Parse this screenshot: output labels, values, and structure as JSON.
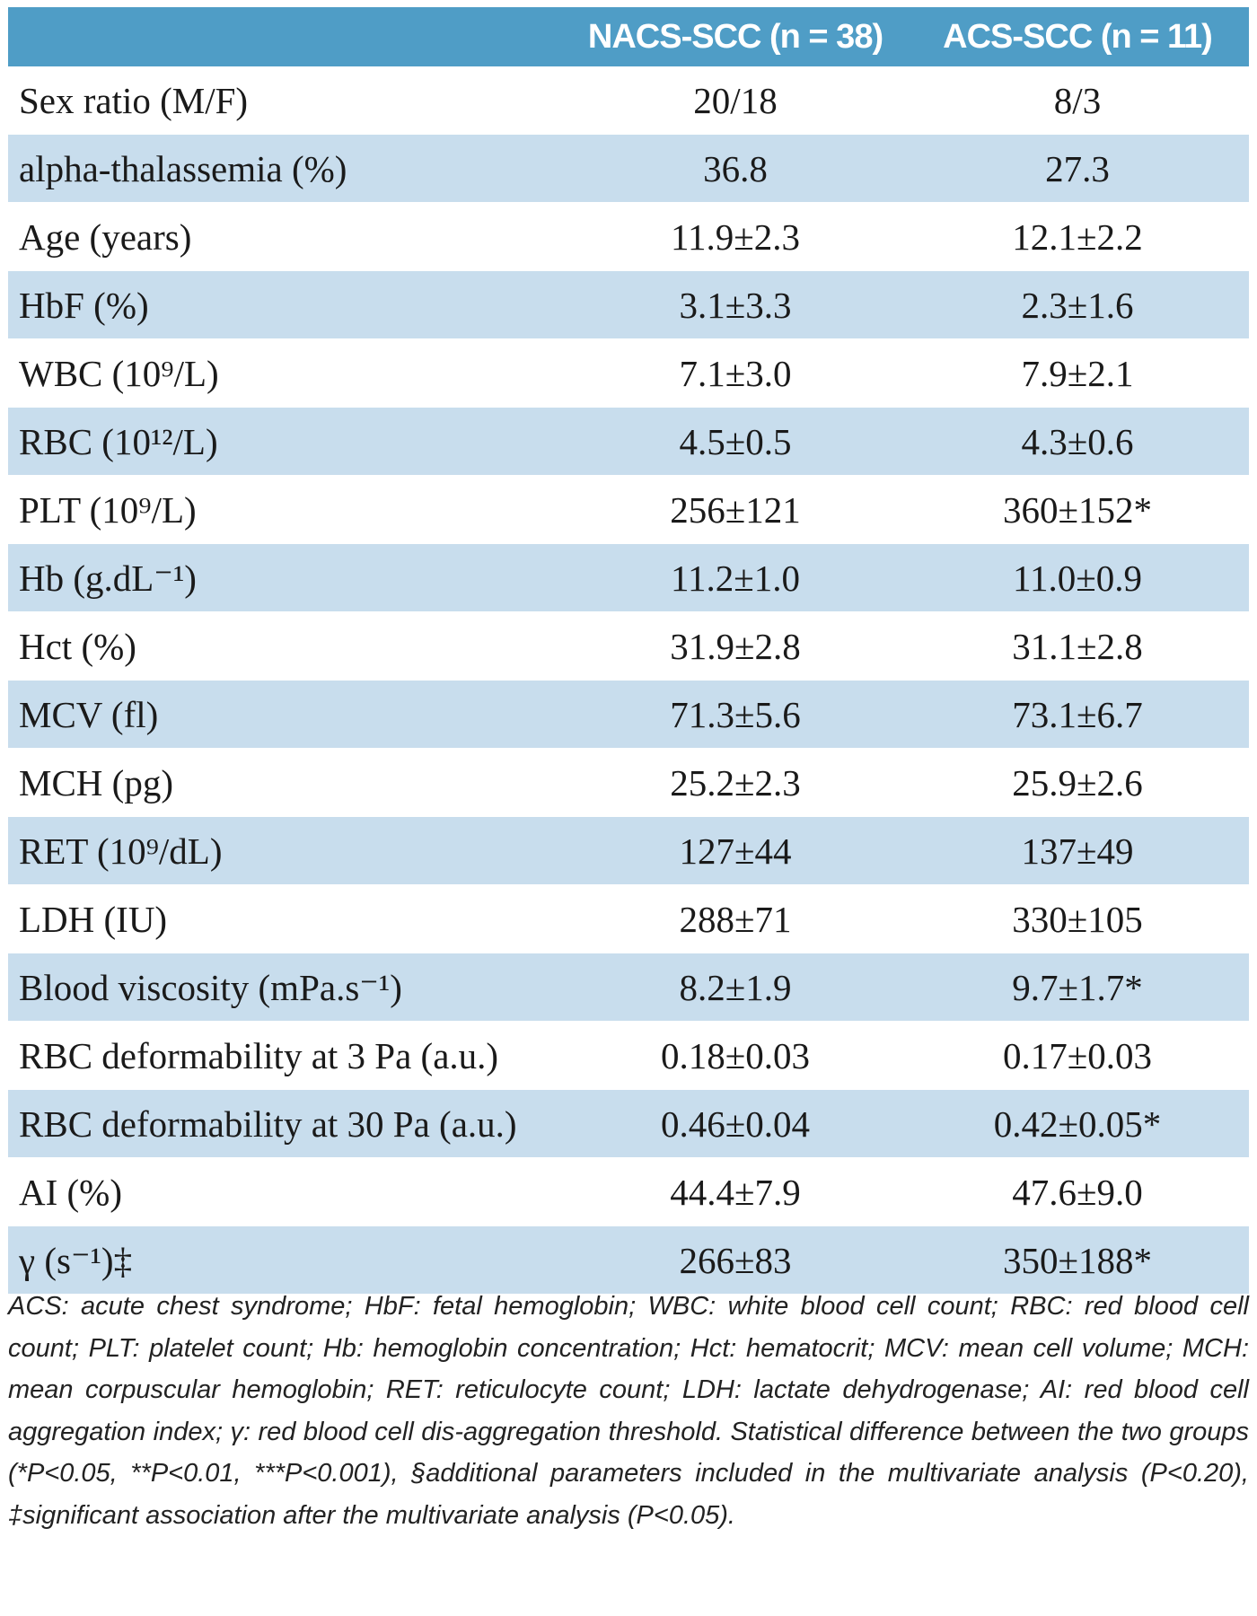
{
  "table": {
    "header": [
      "NACS-SCC (n = 38)",
      "ACS-SCC (n = 11)"
    ],
    "rows": [
      [
        "Sex ratio (M/F)",
        "20/18",
        "8/3"
      ],
      [
        "alpha-thalassemia (%)",
        "36.8",
        "27.3"
      ],
      [
        "Age (years)",
        "11.9±2.3",
        "12.1±2.2"
      ],
      [
        "HbF (%)",
        "3.1±3.3",
        "2.3±1.6"
      ],
      [
        "WBC (10⁹/L)",
        "7.1±3.0",
        "7.9±2.1"
      ],
      [
        "RBC (10¹²/L)",
        "4.5±0.5",
        "4.3±0.6"
      ],
      [
        "PLT (10⁹/L)",
        "256±121",
        "360±152*"
      ],
      [
        "Hb (g.dL⁻¹)",
        "11.2±1.0",
        "11.0±0.9"
      ],
      [
        "Hct (%)",
        "31.9±2.8",
        "31.1±2.8"
      ],
      [
        "MCV (fl)",
        "71.3±5.6",
        "73.1±6.7"
      ],
      [
        "MCH (pg)",
        "25.2±2.3",
        "25.9±2.6"
      ],
      [
        "RET (10⁹/dL)",
        "127±44",
        "137±49"
      ],
      [
        "LDH (IU)",
        "288±71",
        "330±105"
      ],
      [
        "Blood viscosity (mPa.s⁻¹)",
        "8.2±1.9",
        "9.7±1.7*"
      ],
      [
        "RBC deformability at 3 Pa (a.u.)",
        "0.18±0.03",
        "0.17±0.03"
      ],
      [
        "RBC deformability at 30 Pa (a.u.)",
        "0.46±0.04",
        "0.42±0.05*"
      ],
      [
        "AI (%)",
        "44.4±7.9",
        "47.6±9.0"
      ],
      [
        "γ (s⁻¹)‡",
        "266±83",
        "350±188*"
      ]
    ],
    "footnote": "ACS: acute chest syndrome; HbF: fetal hemoglobin; WBC: white blood cell count; RBC: red blood cell count; PLT: platelet count; Hb: hemoglobin concentration; Hct: hematocrit; MCV: mean cell volume; MCH: mean corpuscular hemoglobin; RET: reticulocyte count; LDH: lactate dehydrogenase; AI: red blood cell aggregation index; γ: red blood cell dis-aggregation threshold. Statistical difference between the two groups (*P<0.05, **P<0.01, ***P<0.001), §additional parameters included in the multivariate analysis (P<0.20), ‡significant association after the multivariate analysis (P<0.05)."
  }
}
